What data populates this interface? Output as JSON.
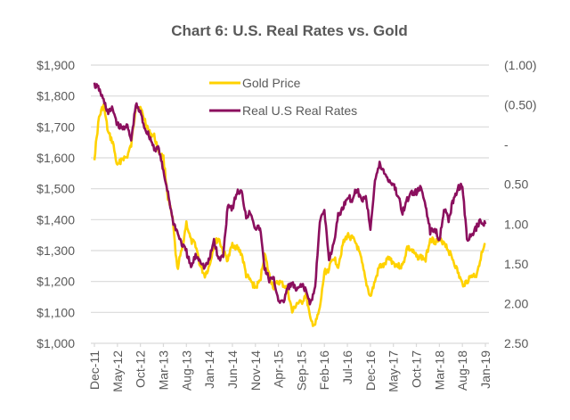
{
  "chart_data": {
    "type": "line",
    "title": "Chart 6: U.S. Real Rates vs. Gold",
    "xlabel": "",
    "ylabel": "",
    "y2label": "",
    "grid": true,
    "legend_position": "top-center",
    "x_tick_labels": [
      "Dec-11",
      "May-12",
      "Oct-12",
      "Mar-13",
      "Aug-13",
      "Jan-14",
      "Jun-14",
      "Nov-14",
      "Apr-15",
      "Sep-15",
      "Feb-16",
      "Jul-16",
      "Dec-16",
      "May-17",
      "Oct-17",
      "Mar-18",
      "Aug-18",
      "Jan-19"
    ],
    "x": [
      "Dec-11",
      "Jan-12",
      "Feb-12",
      "Mar-12",
      "Apr-12",
      "May-12",
      "Jun-12",
      "Jul-12",
      "Aug-12",
      "Sep-12",
      "Oct-12",
      "Nov-12",
      "Dec-12",
      "Jan-13",
      "Feb-13",
      "Mar-13",
      "Apr-13",
      "May-13",
      "Jun-13",
      "Jul-13",
      "Aug-13",
      "Sep-13",
      "Oct-13",
      "Nov-13",
      "Dec-13",
      "Jan-14",
      "Feb-14",
      "Mar-14",
      "Apr-14",
      "May-14",
      "Jun-14",
      "Jul-14",
      "Aug-14",
      "Sep-14",
      "Oct-14",
      "Nov-14",
      "Dec-14",
      "Jan-15",
      "Feb-15",
      "Mar-15",
      "Apr-15",
      "May-15",
      "Jun-15",
      "Jul-15",
      "Aug-15",
      "Sep-15",
      "Oct-15",
      "Nov-15",
      "Dec-15",
      "Jan-16",
      "Feb-16",
      "Mar-16",
      "Apr-16",
      "May-16",
      "Jun-16",
      "Jul-16",
      "Aug-16",
      "Sep-16",
      "Oct-16",
      "Nov-16",
      "Dec-16",
      "Jan-17",
      "Feb-17",
      "Mar-17",
      "Apr-17",
      "May-17",
      "Jun-17",
      "Jul-17",
      "Aug-17",
      "Sep-17",
      "Oct-17",
      "Nov-17",
      "Dec-17",
      "Jan-18",
      "Feb-18",
      "Mar-18",
      "Apr-18",
      "May-18",
      "Jun-18",
      "Jul-18",
      "Aug-18",
      "Sep-18",
      "Oct-18",
      "Nov-18",
      "Dec-18",
      "Jan-19"
    ],
    "y_left": {
      "min": 1000,
      "max": 1900,
      "step": 100,
      "tick_labels": [
        "$1,000",
        "$1,100",
        "$1,200",
        "$1,300",
        "$1,400",
        "$1,500",
        "$1,600",
        "$1,700",
        "$1,800",
        "$1,900"
      ]
    },
    "y_right": {
      "min": -1.0,
      "max": 2.5,
      "step": 0.5,
      "inverted": true,
      "tick_labels": [
        "(1.00)",
        "(0.50)",
        "-",
        "0.50",
        "1.00",
        "1.50",
        "2.00",
        "2.50"
      ]
    },
    "series": [
      {
        "name": "Gold Price",
        "axis": "left",
        "color": "#FFD200",
        "values": [
          1600,
          1730,
          1770,
          1680,
          1650,
          1570,
          1600,
          1600,
          1640,
          1770,
          1760,
          1720,
          1680,
          1670,
          1620,
          1600,
          1470,
          1400,
          1240,
          1300,
          1390,
          1330,
          1320,
          1250,
          1220,
          1250,
          1320,
          1340,
          1295,
          1270,
          1320,
          1310,
          1290,
          1220,
          1200,
          1180,
          1200,
          1290,
          1220,
          1180,
          1200,
          1190,
          1175,
          1100,
          1130,
          1130,
          1160,
          1070,
          1060,
          1110,
          1230,
          1240,
          1280,
          1250,
          1320,
          1350,
          1340,
          1320,
          1270,
          1200,
          1150,
          1200,
          1250,
          1250,
          1280,
          1260,
          1250,
          1250,
          1310,
          1300,
          1280,
          1280,
          1270,
          1340,
          1330,
          1330,
          1330,
          1300,
          1270,
          1230,
          1190,
          1200,
          1220,
          1220,
          1280,
          1320
        ]
      },
      {
        "name": "Real U.S Real Rates",
        "axis": "right",
        "color": "#8B0F5E",
        "values": [
          -0.75,
          -0.7,
          -0.55,
          -0.4,
          -0.45,
          -0.25,
          -0.2,
          -0.25,
          -0.05,
          -0.5,
          -0.4,
          -0.2,
          -0.1,
          0.05,
          0.05,
          0.35,
          0.6,
          0.95,
          1.1,
          1.25,
          1.35,
          1.55,
          1.4,
          1.45,
          1.55,
          1.45,
          1.2,
          1.45,
          1.4,
          0.75,
          0.8,
          0.6,
          0.6,
          0.9,
          0.85,
          1.05,
          1.05,
          1.55,
          1.7,
          1.7,
          1.95,
          2.0,
          1.8,
          1.75,
          1.85,
          1.75,
          1.85,
          2.0,
          1.8,
          0.95,
          0.85,
          1.45,
          1.25,
          0.9,
          0.8,
          0.65,
          0.7,
          0.55,
          0.7,
          0.65,
          1.05,
          0.45,
          0.25,
          0.35,
          0.45,
          0.5,
          0.65,
          0.85,
          0.7,
          0.6,
          0.6,
          0.55,
          0.75,
          1.1,
          1.05,
          1.2,
          0.8,
          0.95,
          0.7,
          0.55,
          0.5,
          1.2,
          1.15,
          1.05,
          0.95,
          1.0
        ]
      }
    ]
  }
}
